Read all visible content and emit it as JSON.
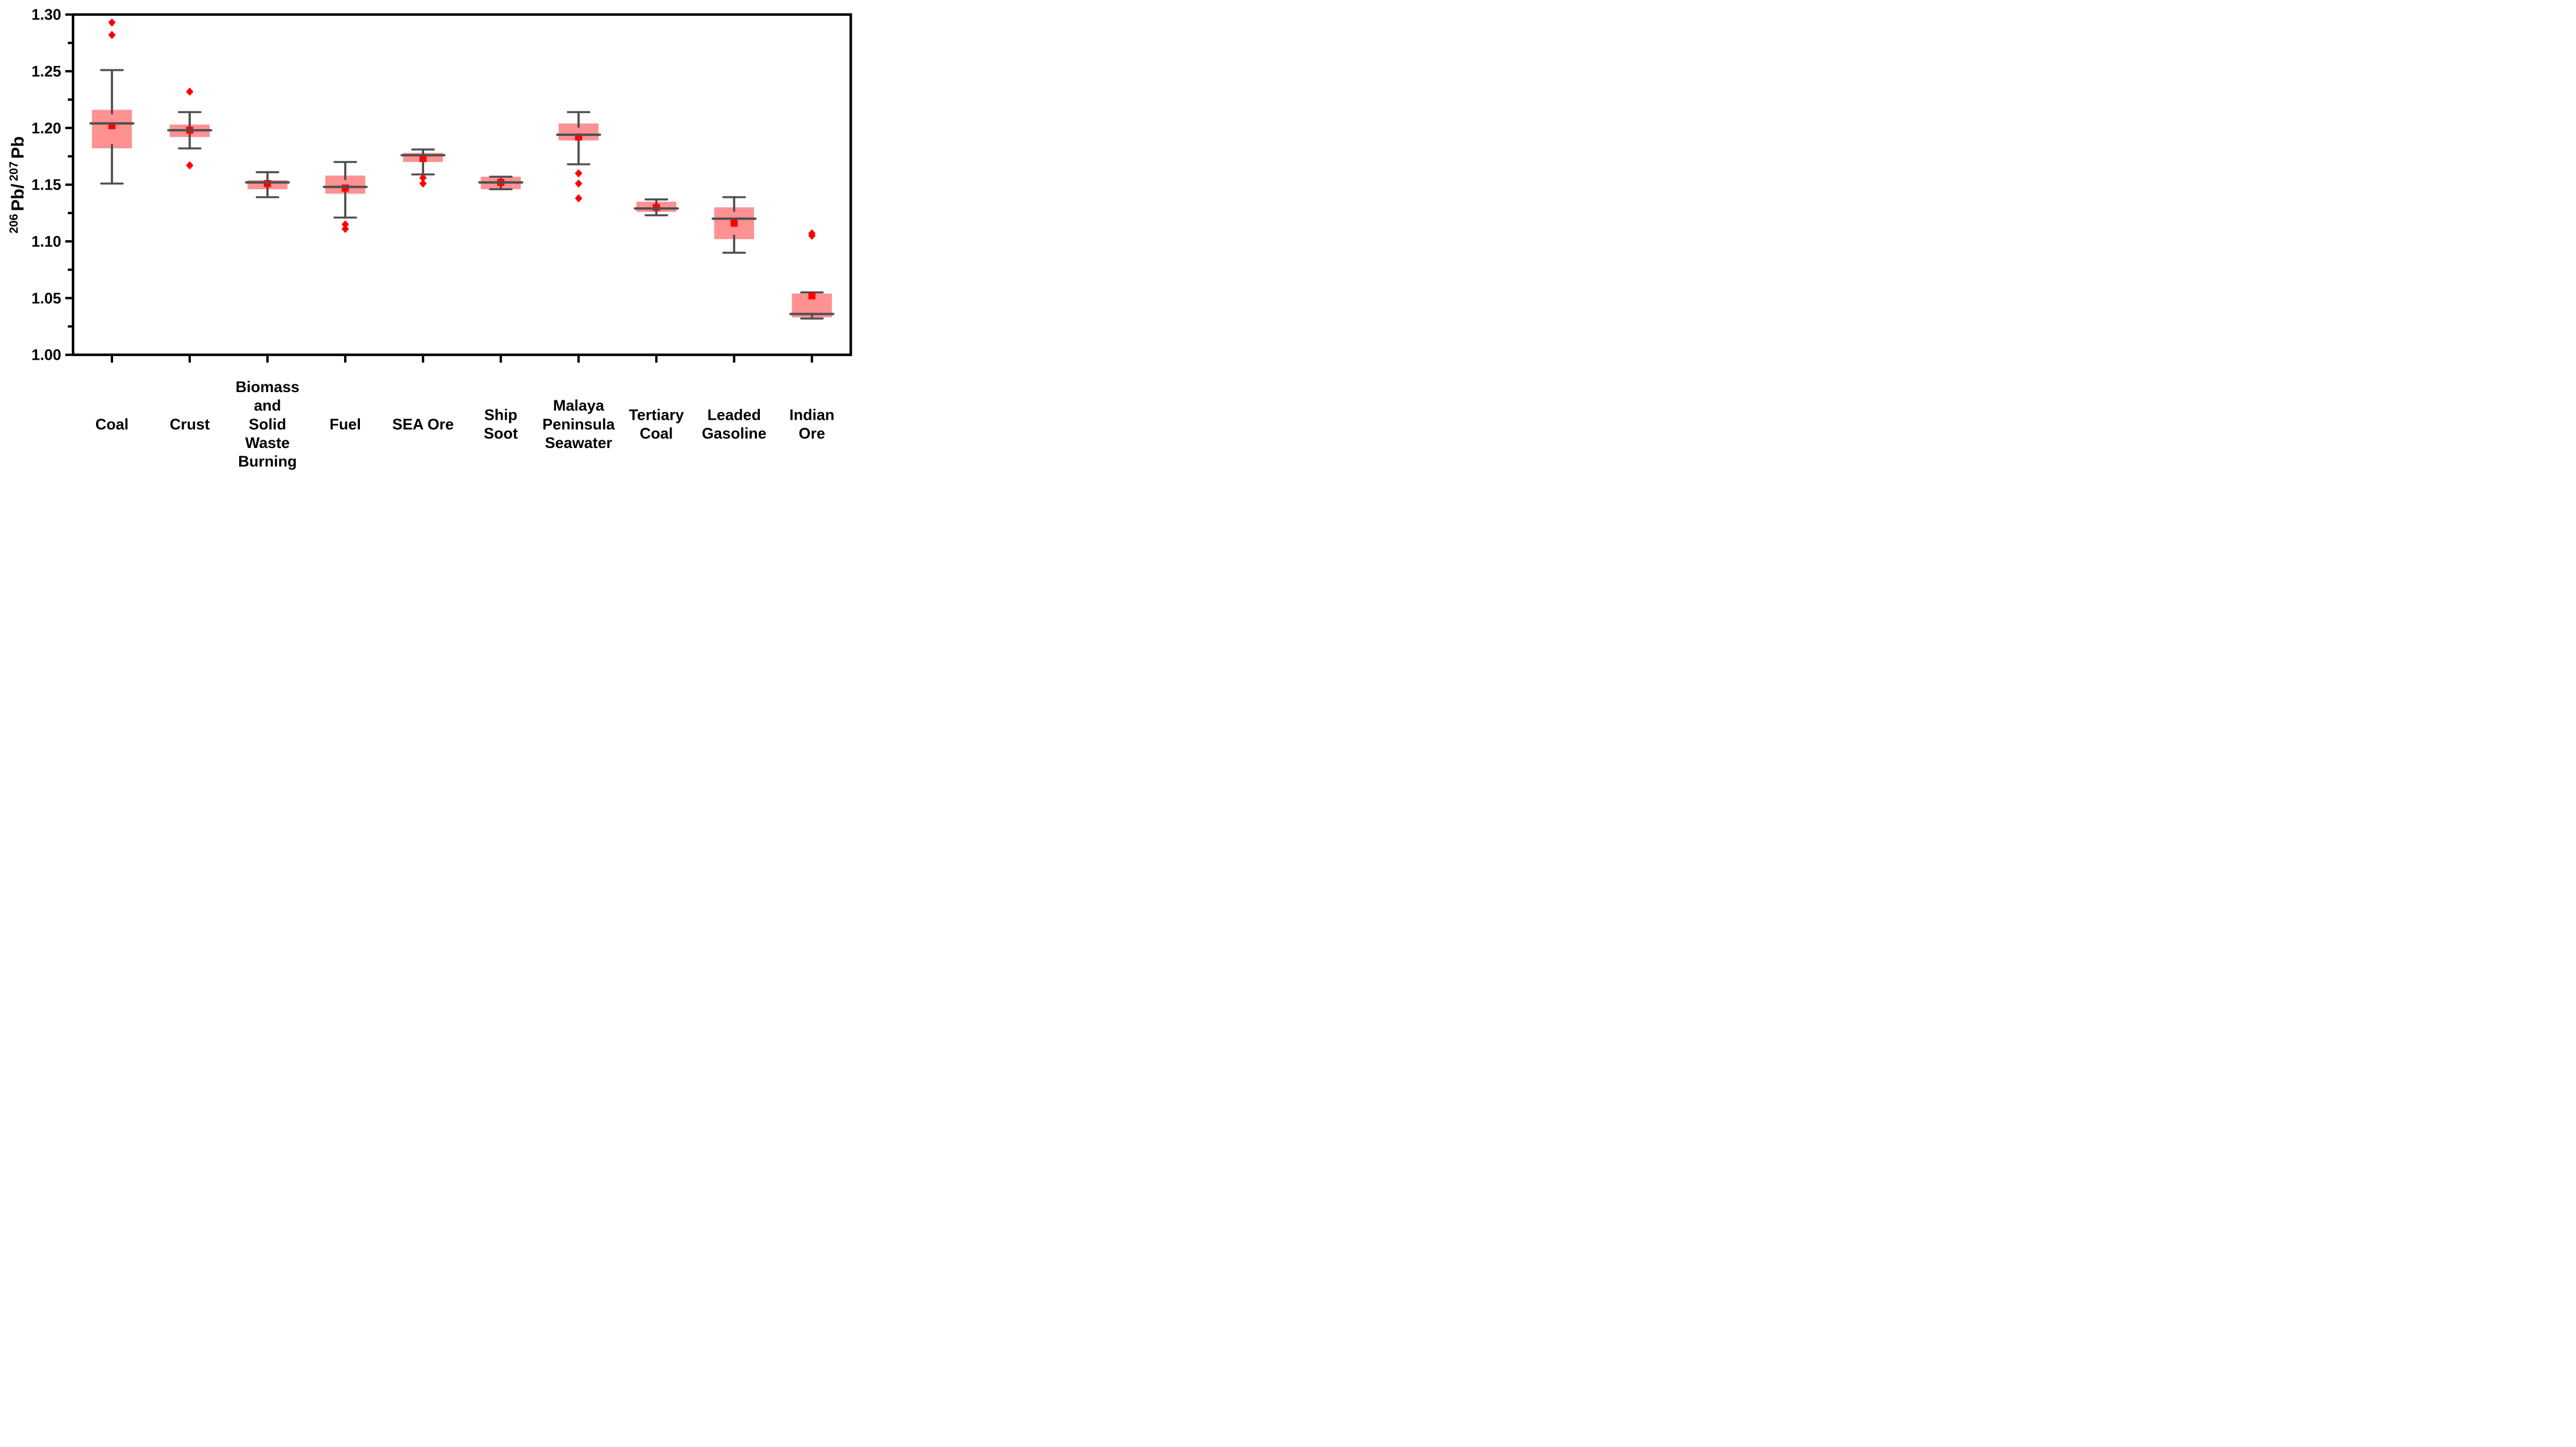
{
  "chart_data": {
    "type": "box",
    "title": "",
    "ylabel": "206Pb/207Pb",
    "ylabel_parts": [
      "206",
      "Pb/",
      "207",
      "Pb"
    ],
    "ylim": [
      1.0,
      1.3
    ],
    "y_major_tick_step": 0.05,
    "y_minor_tick_step": 0.025,
    "y_tick_labels": [
      "1.00",
      "1.05",
      "1.10",
      "1.15",
      "1.20",
      "1.25",
      "1.30"
    ],
    "grid": false,
    "legend": false,
    "mean_marker_shape": "square",
    "outlier_marker_shape": "diamond",
    "categories": [
      "Coal",
      "Crust",
      "Biomass\nand\nSolid\nWaste\nBurning",
      "Fuel",
      "SEA Ore",
      "Ship\nSoot",
      "Malaya\nPeninsula\nSeawater",
      "Tertiary\nCoal",
      "Leaded\nGasoline",
      "Indian\nOre"
    ],
    "boxes": [
      {
        "name": "Coal",
        "whisker_low": 1.151,
        "q1": 1.182,
        "median": 1.204,
        "q3": 1.216,
        "whisker_high": 1.251,
        "mean": 1.202,
        "outliers": [
          1.282,
          1.293
        ]
      },
      {
        "name": "Crust",
        "whisker_low": 1.182,
        "q1": 1.192,
        "median": 1.198,
        "q3": 1.203,
        "whisker_high": 1.214,
        "mean": 1.198,
        "outliers": [
          1.167,
          1.232
        ]
      },
      {
        "name": "Biomass and Solid Waste Burning",
        "whisker_low": 1.139,
        "q1": 1.146,
        "median": 1.152,
        "q3": 1.154,
        "whisker_high": 1.161,
        "mean": 1.151,
        "outliers": []
      },
      {
        "name": "Fuel",
        "whisker_low": 1.121,
        "q1": 1.142,
        "median": 1.148,
        "q3": 1.158,
        "whisker_high": 1.17,
        "mean": 1.147,
        "outliers": [
          1.115,
          1.111
        ]
      },
      {
        "name": "SEA Ore",
        "whisker_low": 1.159,
        "q1": 1.17,
        "median": 1.176,
        "q3": 1.178,
        "whisker_high": 1.181,
        "mean": 1.173,
        "outliers": [
          1.156,
          1.151
        ]
      },
      {
        "name": "Ship Soot",
        "whisker_low": 1.146,
        "q1": 1.146,
        "median": 1.152,
        "q3": 1.157,
        "whisker_high": 1.157,
        "mean": 1.152,
        "outliers": []
      },
      {
        "name": "Malaya Peninsula Seawater",
        "whisker_low": 1.168,
        "q1": 1.189,
        "median": 1.194,
        "q3": 1.204,
        "whisker_high": 1.214,
        "mean": 1.192,
        "outliers": [
          1.16,
          1.151,
          1.138
        ]
      },
      {
        "name": "Tertiary Coal",
        "whisker_low": 1.123,
        "q1": 1.126,
        "median": 1.129,
        "q3": 1.135,
        "whisker_high": 1.137,
        "mean": 1.13,
        "outliers": []
      },
      {
        "name": "Leaded Gasoline",
        "whisker_low": 1.09,
        "q1": 1.102,
        "median": 1.12,
        "q3": 1.13,
        "whisker_high": 1.139,
        "mean": 1.116,
        "outliers": []
      },
      {
        "name": "Indian Ore",
        "whisker_low": 1.032,
        "q1": 1.033,
        "median": 1.036,
        "q3": 1.054,
        "whisker_high": 1.055,
        "mean": 1.052,
        "outliers": [
          1.105,
          1.107
        ]
      }
    ],
    "colors": {
      "box_fill": "#ff9193",
      "whisker": "#4f4f4f",
      "median": "#4f4f4f",
      "mean_marker": "#ff0000",
      "outlier_marker": "#ff0000",
      "axis": "#000000",
      "background": "#ffffff"
    }
  }
}
